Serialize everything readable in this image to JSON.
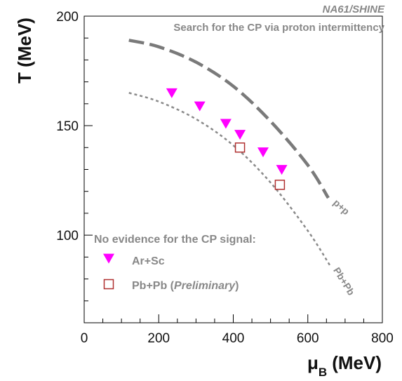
{
  "chart_data": {
    "type": "scatter",
    "experiment": "NA61/SHINE",
    "title": "Search for the CP via proton intermittency",
    "xlabel": "(MeV)",
    "xlabel_symbol": "μ",
    "xlabel_sub": "B",
    "ylabel": "T (MeV)",
    "xlim": [
      0,
      800
    ],
    "ylim": [
      60,
      200
    ],
    "x_ticks": [
      0,
      200,
      400,
      600,
      800
    ],
    "y_ticks": [
      100,
      150,
      200
    ],
    "grid": false,
    "series": [
      {
        "name": "Ar+Sc",
        "marker": "triangle-down",
        "color": "#ff00ff",
        "points": [
          [
            235,
            165
          ],
          [
            310,
            159
          ],
          [
            380,
            151
          ],
          [
            418,
            146
          ],
          [
            480,
            138
          ],
          [
            530,
            130
          ]
        ]
      },
      {
        "name": "Pb+Pb",
        "name_suffix": "Preliminary",
        "marker": "open-square",
        "color": "#b03030",
        "points": [
          [
            418,
            140
          ],
          [
            525,
            123
          ]
        ]
      }
    ],
    "curves": [
      {
        "name": "p+p",
        "style": "long-dash",
        "color": "#7a7a7a",
        "points": [
          [
            120,
            189
          ],
          [
            200,
            186
          ],
          [
            300,
            179
          ],
          [
            400,
            168
          ],
          [
            500,
            152
          ],
          [
            600,
            132
          ],
          [
            655,
            117
          ]
        ]
      },
      {
        "name": "Pb+Pb",
        "style": "short-dash",
        "color": "#8a8a8a",
        "points": [
          [
            120,
            165
          ],
          [
            200,
            161
          ],
          [
            300,
            153
          ],
          [
            400,
            141
          ],
          [
            500,
            124
          ],
          [
            600,
            102
          ],
          [
            660,
            86
          ]
        ]
      }
    ],
    "legend": {
      "heading": "No evidence for the CP signal:",
      "position": "bottom-left",
      "entries": [
        "Ar+Sc",
        "Pb+Pb"
      ]
    }
  }
}
